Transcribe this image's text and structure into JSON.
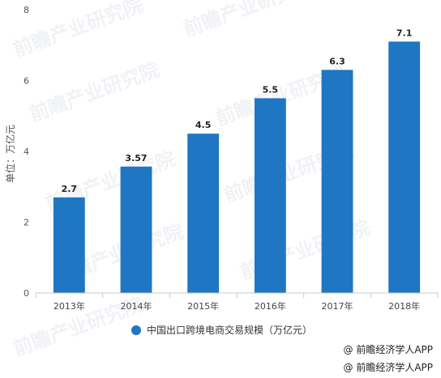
{
  "chart_data": {
    "type": "bar",
    "categories": [
      "2013年",
      "2014年",
      "2015年",
      "2016年",
      "2017年",
      "2018年"
    ],
    "series": [
      {
        "name": "中国出口跨境电商交易规模（万亿元）",
        "values": [
          2.7,
          3.57,
          4.5,
          5.5,
          6.3,
          7.1
        ]
      }
    ],
    "data_labels": [
      "2.7",
      "3.57",
      "4.5",
      "5.5",
      "6.3",
      "7.1"
    ],
    "ylabel": "单位：万亿元",
    "xlabel": "",
    "title": "",
    "ylim": [
      0,
      8
    ],
    "yticks": [
      0,
      2,
      4,
      6,
      8
    ],
    "grid": false,
    "legend_position": "bottom",
    "bar_color": "#1f77c4"
  },
  "legend": {
    "label": "中国出口跨境电商交易规模（万亿元）"
  },
  "sources": [
    "@ 前瞻经济学人APP",
    "@ 前瞻经济学人APP"
  ],
  "watermark": {
    "text": "前瞻产业研究院"
  }
}
